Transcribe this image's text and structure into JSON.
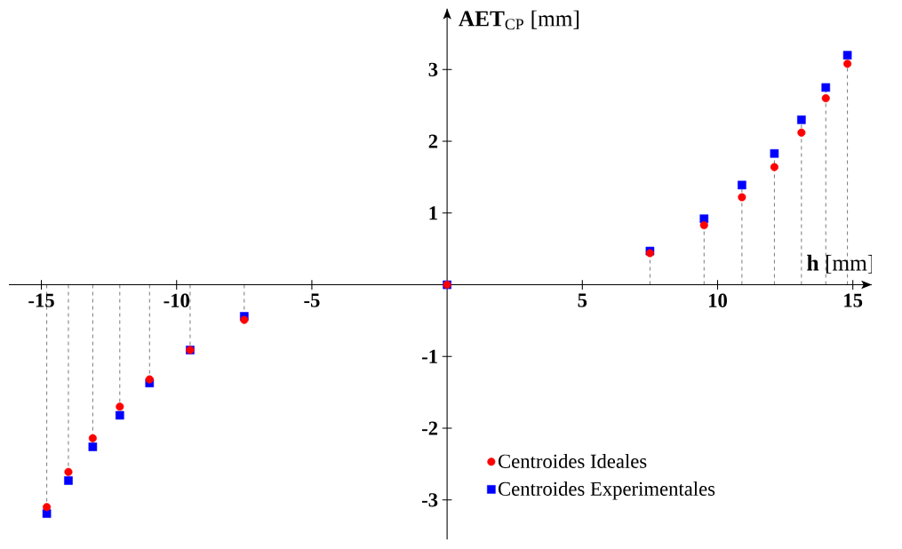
{
  "chart_data": {
    "type": "lollipop",
    "xlabel": "**h** [mm]",
    "ylabel": "**AET**$_{CP}$ [mm]",
    "x": [
      -14.8,
      -14.0,
      -13.1,
      -12.1,
      -11.0,
      -9.5,
      -7.5,
      0,
      7.5,
      9.5,
      10.9,
      12.1,
      13.1,
      14.0,
      14.8
    ],
    "series": [
      {
        "name": "Centroides Ideales",
        "color": "#ff0000",
        "marker": "circle",
        "values": [
          -3.1,
          -2.61,
          -2.14,
          -1.7,
          -1.32,
          -0.91,
          -0.49,
          0,
          0.44,
          0.83,
          1.22,
          1.64,
          2.12,
          2.6,
          3.08
        ]
      },
      {
        "name": "Centroides Experimentales",
        "color": "#0000ff",
        "marker": "square",
        "values": [
          -3.19,
          -2.73,
          -2.26,
          -1.82,
          -1.37,
          -0.91,
          -0.44,
          0,
          0.47,
          0.92,
          1.39,
          1.83,
          2.3,
          2.75,
          3.2
        ]
      }
    ],
    "xlim": [
      -16.2,
      15.7
    ],
    "ylim": [
      -3.55,
      3.85
    ],
    "xticks": [
      -15,
      -10,
      -5,
      5,
      10,
      15
    ],
    "yticks": [
      -3,
      -2,
      -1,
      1,
      2,
      3
    ],
    "line_style": "dashed",
    "legend": "bottom right",
    "grid": false
  }
}
